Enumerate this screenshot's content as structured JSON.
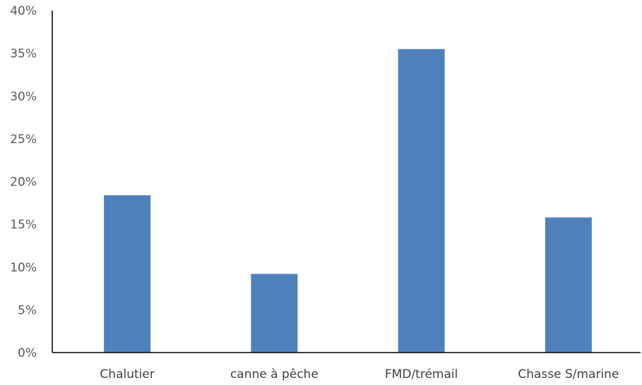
{
  "chart_data": {
    "type": "bar",
    "categories": [
      "Chalutier",
      "canne à pêche",
      "FMD/trémail",
      "Chasse S/marine"
    ],
    "values": [
      18.4,
      9.2,
      35.5,
      15.8
    ],
    "value_unit": "%",
    "y_ticks": [
      "0%",
      "5%",
      "10%",
      "15%",
      "20%",
      "25%",
      "30%",
      "35%",
      "40%"
    ],
    "ylim": [
      0,
      40
    ],
    "title": "",
    "xlabel": "",
    "ylabel": "",
    "grid": false,
    "legend": "none",
    "bar_color": "#4F81BD"
  }
}
